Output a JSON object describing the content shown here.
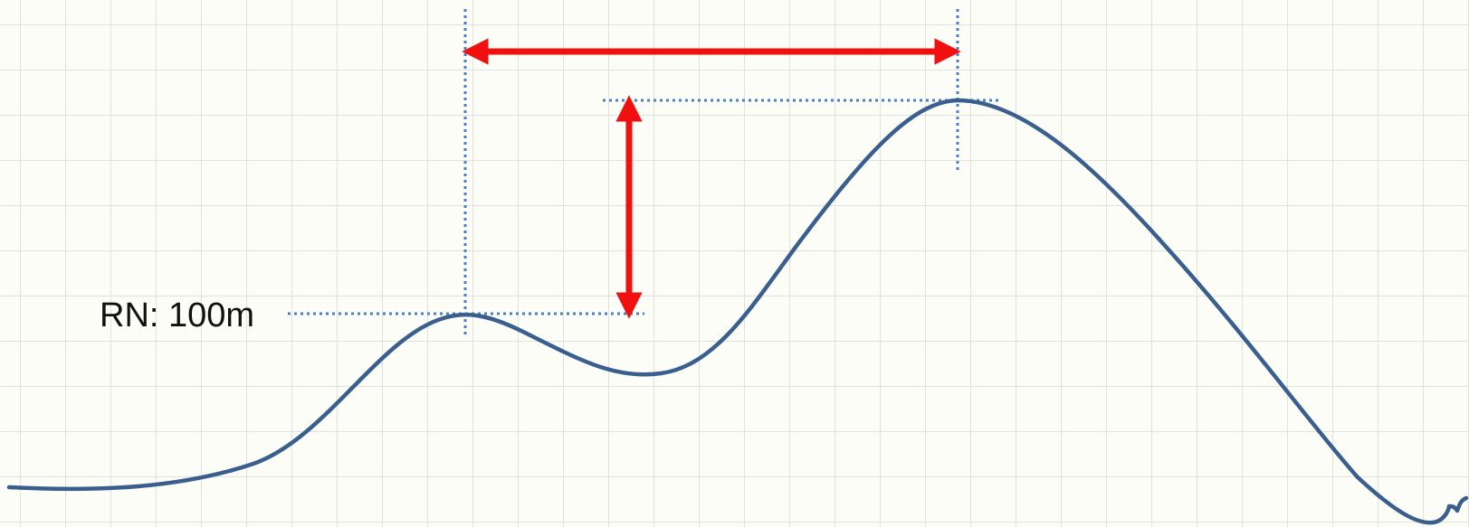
{
  "diagram": {
    "reference_label": "RN: 100m",
    "colors": {
      "background": "#fdfdf8",
      "grid": "#e2e2dc",
      "terrain": "#3a5f8f",
      "guide": "#4a7fc4",
      "arrow": "#f01010",
      "text": "#111111"
    }
  }
}
